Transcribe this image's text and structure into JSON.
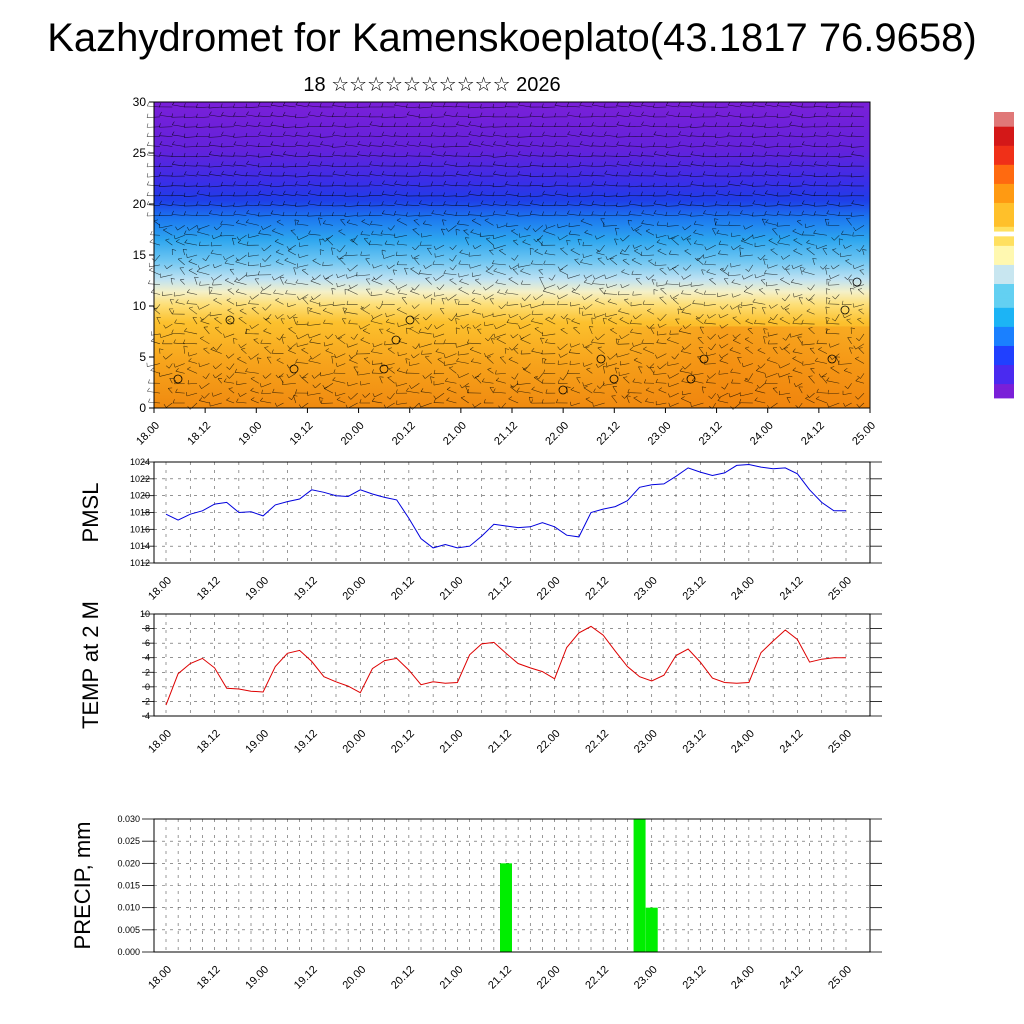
{
  "title": "Kazhydromet for Kamenskoeplato(43.1817 76.9658)",
  "subtitle": "18 ☆☆☆☆☆☆☆☆☆☆ 2026",
  "x_tick_labels": [
    "18.00",
    "18.12",
    "19.00",
    "19.12",
    "20.00",
    "20.12",
    "21.00",
    "21.12",
    "22.00",
    "22.12",
    "23.00",
    "23.12",
    "24.00",
    "24.12",
    "25.00"
  ],
  "colors": {
    "pmsl_line": "#0000dd",
    "temp_line": "#dd0000",
    "precip_bar": "#00ee00",
    "colorbar": [
      "#7a1fd8",
      "#5a2ee8",
      "#3a3bf0",
      "#2060ff",
      "#1d9cff",
      "#2dc4f0",
      "#9fd6f0",
      "#ffffff",
      "#ffef6e",
      "#ffd33a",
      "#ffb81e",
      "#ff9a10",
      "#ff6a10",
      "#f03018",
      "#d81818",
      "#ffffff"
    ]
  },
  "chart_data": [
    {
      "type": "heatmap",
      "title": "",
      "xlabel": "",
      "ylabel": "",
      "ylim": [
        0,
        30
      ],
      "y_ticks": [
        0,
        5,
        10,
        15,
        20,
        25,
        30
      ],
      "x_range_days": [
        "18.00",
        "25.00"
      ],
      "layers": [
        {
          "from": 0,
          "to": 6,
          "color": "orange"
        },
        {
          "from": 6,
          "to": 11,
          "color": "yellow-orange"
        },
        {
          "from": 11,
          "to": 13,
          "color": "pale yellow"
        },
        {
          "from": 13,
          "to": 19,
          "color": "light blue to blue"
        },
        {
          "from": 19,
          "to": 23,
          "color": "dark blue"
        },
        {
          "from": 23,
          "to": 30,
          "color": "purple"
        }
      ],
      "overlay": "wind barbs"
    },
    {
      "type": "line",
      "ylabel": "PMSL",
      "ylim": [
        1012,
        1024
      ],
      "y_ticks": [
        1012,
        1014,
        1016,
        1018,
        1020,
        1022,
        1024
      ],
      "x_hours": [
        0,
        3,
        6,
        9,
        12,
        15,
        18,
        21,
        24,
        27,
        30,
        33,
        36,
        39,
        42,
        45,
        48,
        51,
        54,
        57,
        60,
        63,
        66,
        69,
        72,
        75,
        78,
        81,
        84,
        87,
        90,
        93,
        96,
        99,
        102,
        105,
        108,
        111,
        114,
        117,
        120,
        123,
        126,
        129,
        132,
        135,
        138,
        141,
        144,
        147,
        150,
        153,
        156,
        159,
        162,
        165,
        168
      ],
      "values": [
        1017.8,
        1017.1,
        1017.8,
        1018.2,
        1019.0,
        1019.2,
        1018.0,
        1018.1,
        1017.6,
        1018.9,
        1019.3,
        1019.6,
        1020.7,
        1020.4,
        1020.0,
        1019.9,
        1020.7,
        1020.2,
        1019.8,
        1019.5,
        1017.3,
        1014.9,
        1013.8,
        1014.2,
        1013.8,
        1014.0,
        1015.2,
        1016.6,
        1016.4,
        1016.2,
        1016.3,
        1016.8,
        1016.3,
        1015.3,
        1015.1,
        1018.0,
        1018.4,
        1018.7,
        1019.4,
        1021.0,
        1021.3,
        1021.4,
        1022.3,
        1023.3,
        1022.8,
        1022.4,
        1022.7,
        1023.6,
        1023.7,
        1023.4,
        1023.2,
        1023.3,
        1022.6,
        1020.7,
        1019.2,
        1018.2,
        1018.2
      ]
    },
    {
      "type": "line",
      "ylabel": "TEMP at 2 M",
      "ylim": [
        -4,
        10
      ],
      "y_ticks": [
        -4,
        -2,
        0,
        2,
        4,
        6,
        8,
        10
      ],
      "x_hours": [
        0,
        3,
        6,
        9,
        12,
        15,
        18,
        21,
        24,
        27,
        30,
        33,
        36,
        39,
        42,
        45,
        48,
        51,
        54,
        57,
        60,
        63,
        66,
        69,
        72,
        75,
        78,
        81,
        84,
        87,
        90,
        93,
        96,
        99,
        102,
        105,
        108,
        111,
        114,
        117,
        120,
        123,
        126,
        129,
        132,
        135,
        138,
        141,
        144,
        147,
        150,
        153,
        156,
        159,
        162,
        165,
        168
      ],
      "values": [
        -2.5,
        1.8,
        3.2,
        3.9,
        2.6,
        -0.2,
        -0.3,
        -0.6,
        -0.7,
        2.8,
        4.6,
        5.0,
        3.5,
        1.4,
        0.7,
        0.1,
        -0.8,
        2.5,
        3.6,
        3.9,
        2.3,
        0.3,
        0.7,
        0.5,
        0.6,
        4.4,
        5.9,
        6.1,
        4.6,
        3.2,
        2.6,
        2.1,
        1.1,
        5.4,
        7.4,
        8.3,
        7.1,
        4.9,
        2.8,
        1.4,
        0.8,
        1.6,
        4.3,
        5.2,
        3.4,
        1.2,
        0.6,
        0.5,
        0.6,
        4.7,
        6.3,
        7.8,
        6.5,
        3.4,
        3.8,
        4.0,
        4.0
      ]
    },
    {
      "type": "bar",
      "ylabel": "PRECIP, mm",
      "ylim": [
        0,
        0.03
      ],
      "y_ticks": [
        "0.000",
        "0.005",
        "0.010",
        "0.015",
        "0.020",
        "0.025",
        "0.030"
      ],
      "bars": [
        {
          "x_hours": 84,
          "value": 0.02
        },
        {
          "x_hours": 117,
          "value": 0.03
        },
        {
          "x_hours": 120,
          "value": 0.01
        }
      ]
    }
  ]
}
